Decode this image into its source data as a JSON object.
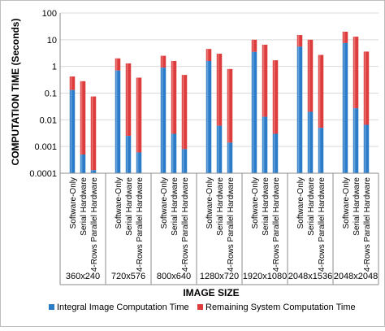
{
  "chart_data": {
    "type": "bar",
    "stacked": true,
    "y_scale": "log",
    "ylim": [
      0.0001,
      100
    ],
    "y_ticks": [
      "0.0001",
      "0.001",
      "0.01",
      "0.1",
      "1",
      "10",
      "100"
    ],
    "ylabel": "COMPUTATION TIME (Seconds)",
    "xlabel": "IMAGE SIZE",
    "grid": "horizontal",
    "legend_position": "bottom",
    "colors": {
      "integral": "#2b7cc7",
      "remaining": "#dc3c3c"
    },
    "groups": [
      "360x240",
      "720x576",
      "800x640",
      "1280x720",
      "1920x1080",
      "2048x1536",
      "2048x2048"
    ],
    "categories": [
      "Software-Only",
      "Serial Hardware",
      "4-Rows Parallel Hardware"
    ],
    "series": [
      {
        "name": "Integral Image Computation Time",
        "values": [
          [
            0.13,
            0.0005,
            0.00013
          ],
          [
            0.7,
            0.0025,
            0.0006
          ],
          [
            0.9,
            0.003,
            0.0008
          ],
          [
            1.6,
            0.006,
            0.0014
          ],
          [
            3.5,
            0.013,
            0.003
          ],
          [
            5.5,
            0.02,
            0.005
          ],
          [
            7.5,
            0.027,
            0.0065
          ]
        ]
      },
      {
        "name": "Remaining System Computation Time",
        "totals": [
          [
            0.42,
            0.28,
            0.075
          ],
          [
            2.0,
            1.3,
            0.38
          ],
          [
            2.5,
            1.6,
            0.48
          ],
          [
            4.5,
            3.0,
            0.8
          ],
          [
            10,
            6.5,
            1.7
          ],
          [
            15,
            10,
            2.7
          ],
          [
            20,
            13,
            3.6
          ]
        ]
      }
    ]
  }
}
